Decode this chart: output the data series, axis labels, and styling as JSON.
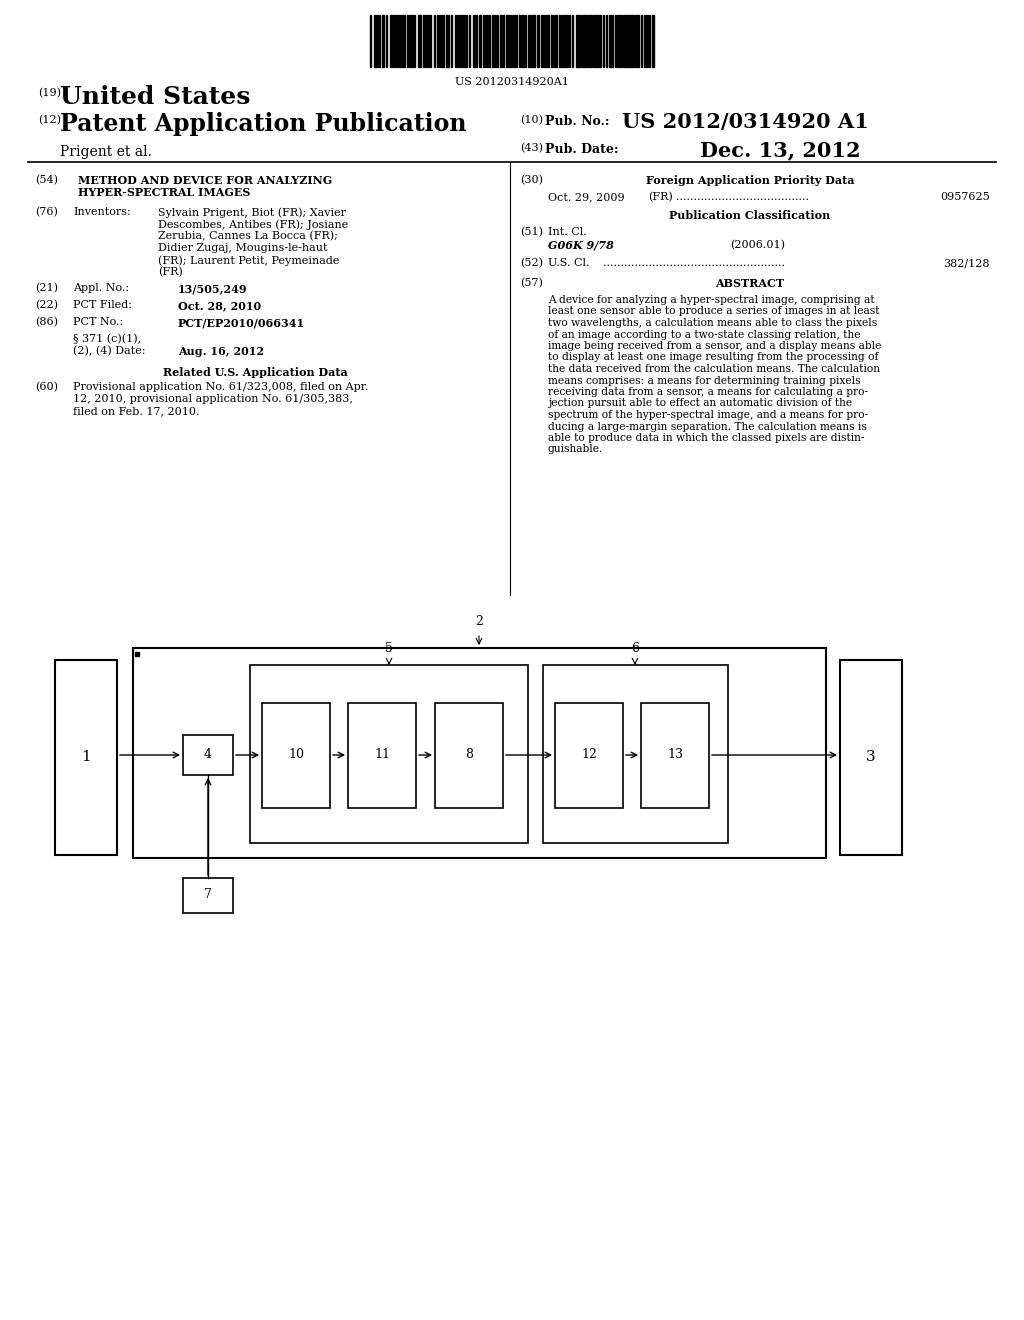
{
  "bg_color": "#ffffff",
  "barcode_text": "US 20120314920A1",
  "header_line1_num": "(19)",
  "header_line1_text": "United States",
  "header_line2_num": "(12)",
  "header_line2_text": "Patent Application Publication",
  "header_right1_num": "(10)",
  "header_right1_label": "Pub. No.:",
  "header_right1_val": "US 2012/0314920 A1",
  "header_right2_num": "(43)",
  "header_right2_label": "Pub. Date:",
  "header_right2_val": "Dec. 13, 2012",
  "header_author": "Prigent et al.",
  "title_num": "(54)",
  "title_line1": "METHOD AND DEVICE FOR ANALYZING",
  "title_line2": "HYPER-SPECTRAL IMAGES",
  "inventors_num": "(76)",
  "inventors_label": "Inventors:",
  "inventors_line1": "Sylvain Prigent, Biot (FR); Xavier",
  "inventors_line2": "Descombes, Antibes (FR); Josiane",
  "inventors_line3": "Zerubia, Cannes La Bocca (FR);",
  "inventors_line4": "Didier Zugaj, Mougins-le-haut",
  "inventors_line5": "(FR); Laurent Petit, Peymeinade",
  "inventors_line6": "(FR)",
  "appl_num_label": "(21)",
  "appl_num_field": "Appl. No.:",
  "appl_num_val": "13/505,249",
  "pct_filed_label": "(22)",
  "pct_filed_field": "PCT Filed:",
  "pct_filed_val": "Oct. 28, 2010",
  "pct_no_label": "(86)",
  "pct_no_field": "PCT No.:",
  "pct_no_val": "PCT/EP2010/066341",
  "sect371_field1": "§ 371 (c)(1),",
  "sect371_field2": "(2), (4) Date:",
  "sect371_val": "Aug. 16, 2012",
  "related_header": "Related U.S. Application Data",
  "prov_num": "(60)",
  "prov_line1": "Provisional application No. 61/323,008, filed on Apr.",
  "prov_line2": "12, 2010, provisional application No. 61/305,383,",
  "prov_line3": "filed on Feb. 17, 2010.",
  "right_col_label30": "(30)",
  "right_col_header30": "Foreign Application Priority Data",
  "foreign_line": "Oct. 29, 2009    (FR) ......................................  0957625",
  "pub_class_header": "Publication Classification",
  "int_cl_label": "(51)",
  "int_cl_field": "Int. Cl.",
  "int_cl_val": "G06K 9/78",
  "int_cl_year": "(2006.01)",
  "us_cl_label": "(52)",
  "us_cl_field": "U.S. Cl.",
  "us_cl_dots": "....................................................",
  "us_cl_val": "382/128",
  "abstract_label": "(57)",
  "abstract_header": "ABSTRACT",
  "abstract_lines": [
    "A device for analyzing a hyper-spectral image, comprising at",
    "least one sensor able to produce a series of images in at least",
    "two wavelengths, a calculation means able to class the pixels",
    "of an image according to a two-state classing relation, the",
    "image being received from a sensor, and a display means able",
    "to display at least one image resulting from the processing of",
    "the data received from the calculation means. The calculation",
    "means comprises: a means for determining training pixels",
    "receiving data from a sensor, a means for calculating a pro-",
    "jection pursuit able to effect an automatic division of the",
    "spectrum of the hyper-spectral image, and a means for pro-",
    "ducing a large-margin separation. The calculation means is",
    "able to produce data in which the classed pixels are distin-",
    "guishable."
  ]
}
